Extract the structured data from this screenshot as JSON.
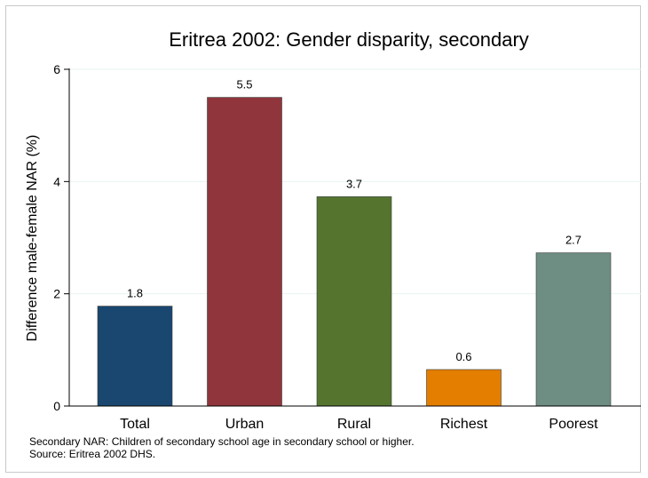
{
  "chart_data": {
    "type": "bar",
    "title": "Eritrea 2002: Gender disparity, secondary",
    "ylabel": "Difference male-female NAR (%)",
    "xlabel": "",
    "categories": [
      "Total",
      "Urban",
      "Rural",
      "Richest",
      "Poorest"
    ],
    "values": [
      1.78,
      5.5,
      3.73,
      0.65,
      2.73
    ],
    "value_labels": [
      "1.8",
      "5.5",
      "3.7",
      "0.6",
      "2.7"
    ],
    "colors": [
      "#1a476f",
      "#90353b",
      "#55752f",
      "#e37e00",
      "#6e8e84"
    ],
    "ylim": [
      0,
      6
    ],
    "yticks": [
      0,
      2,
      4,
      6
    ],
    "grid": true,
    "legend": "none"
  },
  "notes": {
    "line1": "Secondary NAR: Children of secondary school age in secondary school or higher.",
    "line2": "Source: Eritrea 2002 DHS."
  }
}
